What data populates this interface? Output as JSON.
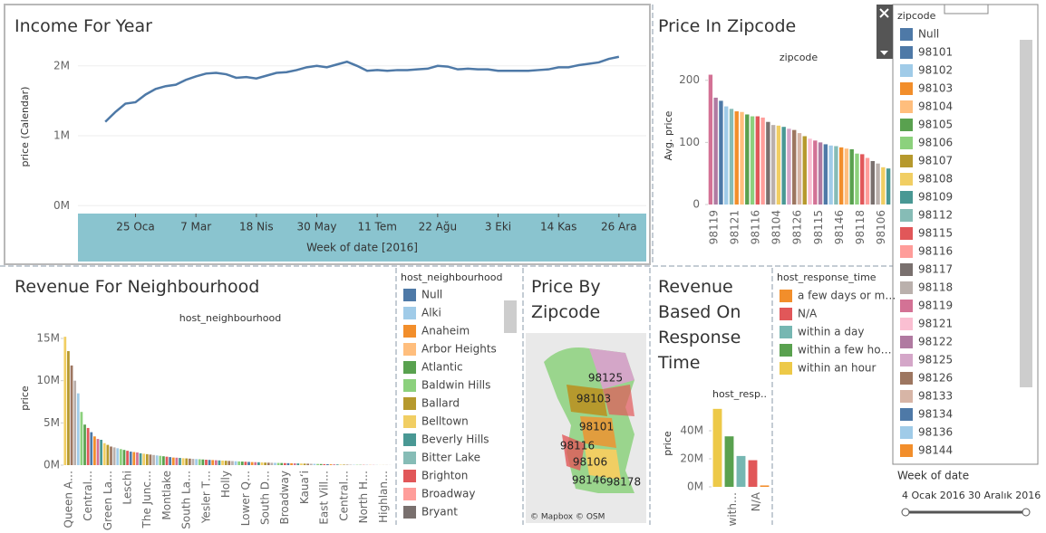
{
  "chart_data": [
    {
      "type": "line",
      "title": "Income For Year",
      "y_label": "price (Calendar)",
      "x_label": "Week of date [2016]",
      "color": "#4e79a7",
      "x": [
        "2016-01-04",
        "2016-01-11",
        "2016-01-18",
        "2016-01-25",
        "2016-02-01",
        "2016-02-08",
        "2016-02-15",
        "2016-02-22",
        "2016-02-29",
        "2016-03-07",
        "2016-03-14",
        "2016-03-21",
        "2016-03-28",
        "2016-04-04",
        "2016-04-11",
        "2016-04-18",
        "2016-04-25",
        "2016-05-02",
        "2016-05-09",
        "2016-05-16",
        "2016-05-23",
        "2016-05-30",
        "2016-06-06",
        "2016-06-13",
        "2016-06-20",
        "2016-06-27",
        "2016-07-04",
        "2016-07-11",
        "2016-07-18",
        "2016-07-25",
        "2016-08-01",
        "2016-08-08",
        "2016-08-15",
        "2016-08-22",
        "2016-08-29",
        "2016-09-05",
        "2016-09-12",
        "2016-09-19",
        "2016-09-26",
        "2016-10-03",
        "2016-10-10",
        "2016-10-17",
        "2016-10-24",
        "2016-10-31",
        "2016-11-07",
        "2016-11-14",
        "2016-11-21",
        "2016-11-28",
        "2016-12-05",
        "2016-12-12",
        "2016-12-19",
        "2016-12-26"
      ],
      "values": [
        1200000,
        1340000,
        1460000,
        1480000,
        1590000,
        1670000,
        1710000,
        1730000,
        1800000,
        1850000,
        1890000,
        1900000,
        1880000,
        1830000,
        1840000,
        1820000,
        1860000,
        1900000,
        1910000,
        1940000,
        1980000,
        2000000,
        1980000,
        2020000,
        2060000,
        2000000,
        1930000,
        1940000,
        1930000,
        1940000,
        1940000,
        1950000,
        1960000,
        2000000,
        1990000,
        1950000,
        1960000,
        1950000,
        1950000,
        1930000,
        1930000,
        1930000,
        1930000,
        1940000,
        1950000,
        1980000,
        1980000,
        2010000,
        2030000,
        2050000,
        2100000,
        2130000
      ],
      "xlim": [
        "2015-12-16",
        "2017-01-14"
      ],
      "xticks": [
        {
          "value": "2016-01-25",
          "label": "25 Oca"
        },
        {
          "value": "2016-03-07",
          "label": "7 Mar"
        },
        {
          "value": "2016-04-18",
          "label": "18 Nis"
        },
        {
          "value": "2016-05-30",
          "label": "30 May"
        },
        {
          "value": "2016-07-11",
          "label": "11 Tem"
        },
        {
          "value": "2016-08-22",
          "label": "22 Ağu"
        },
        {
          "value": "2016-10-03",
          "label": "3 Eki"
        },
        {
          "value": "2016-11-14",
          "label": "14 Kas"
        },
        {
          "value": "2016-12-26",
          "label": "26 Ara"
        }
      ],
      "ylim": [
        -100000,
        2360000
      ],
      "yticks": [
        {
          "value": 0,
          "label": "0M"
        },
        {
          "value": 1000000,
          "label": "1M"
        },
        {
          "value": 2000000,
          "label": "2M"
        }
      ],
      "grid": true
    },
    {
      "type": "bar",
      "title": "Price In Zipcode",
      "subtitle": "zipcode",
      "y_label": "Avg. price",
      "categories": [
        "98119",
        null,
        null,
        null,
        "98121",
        null,
        null,
        null,
        "98116",
        null,
        null,
        null,
        "98104",
        null,
        null,
        null,
        "98126",
        null,
        null,
        null,
        "98115",
        null,
        null,
        null,
        "98146",
        null,
        null,
        null,
        "98118",
        null,
        null,
        null,
        "98106",
        null,
        null
      ],
      "values": [
        209,
        172,
        167,
        158,
        154,
        150,
        149,
        145,
        142,
        142,
        140,
        133,
        128,
        127,
        125,
        122,
        120,
        115,
        110,
        106,
        103,
        100,
        97,
        95,
        94,
        92,
        90,
        89,
        82,
        81,
        75,
        70,
        66,
        60,
        58
      ],
      "palette": [
        "#d37295",
        "#b07aa1",
        "#4e79a7",
        "#a0cbe8",
        "#86bcb6",
        "#f28e2b",
        "#ffbe7d",
        "#59a14f",
        "#8cd17d",
        "#e15759",
        "#ff9d9a",
        "#79706e",
        "#bab0ac",
        "#f1ce63",
        "#499894",
        "#d4a6c8",
        "#9d7660",
        "#d7b5a6",
        "#b6992d",
        "#fabfd2"
      ],
      "ylim": [
        0,
        220
      ],
      "yticks": [
        0,
        100,
        200
      ],
      "grid": false
    },
    {
      "type": "bar",
      "title": "Revenue For Neighbourhood",
      "subtitle": "host_neighbourhood",
      "y_label": "price",
      "categories": [
        "Queen A…",
        null,
        null,
        null,
        null,
        null,
        "Central…",
        null,
        null,
        null,
        null,
        null,
        "Green La…",
        null,
        null,
        null,
        null,
        null,
        "Leschi",
        null,
        null,
        null,
        null,
        null,
        "The Junc…",
        null,
        null,
        null,
        null,
        null,
        "Montlake",
        null,
        null,
        null,
        null,
        null,
        "South La…",
        null,
        null,
        null,
        null,
        null,
        "Yesler T…",
        null,
        null,
        null,
        null,
        null,
        "Holly",
        null,
        null,
        null,
        null,
        null,
        "Lower Q…",
        null,
        null,
        null,
        null,
        null,
        "South D…",
        null,
        null,
        null,
        null,
        null,
        "Broadway",
        null,
        null,
        null,
        null,
        null,
        "Kauaʻi",
        null,
        null,
        null,
        null,
        null,
        "East Vill…",
        null,
        null,
        null,
        null,
        null,
        "Central…",
        null,
        null,
        null,
        null,
        null,
        "North H…",
        null,
        null,
        null,
        null,
        null,
        "Highlan…",
        null,
        null,
        null
      ],
      "values": [
        15200000,
        13500000,
        11800000,
        10000000,
        8500000,
        6300000,
        4800000,
        4400000,
        3900000,
        3400000,
        3100000,
        3000000,
        2600000,
        2400000,
        2200000,
        2100000,
        2000000,
        1900000,
        1800000,
        1700000,
        1600000,
        1550000,
        1500000,
        1400000,
        1350000,
        1300000,
        1250000,
        1200000,
        1150000,
        1100000,
        1050000,
        1000000,
        950000,
        900000,
        880000,
        850000,
        820000,
        800000,
        770000,
        740000,
        720000,
        700000,
        670000,
        640000,
        620000,
        600000,
        580000,
        560000,
        540000,
        520000,
        500000,
        480000,
        460000,
        440000,
        420000,
        400000,
        380000,
        360000,
        350000,
        340000,
        320000,
        300000,
        290000,
        280000,
        270000,
        260000,
        250000,
        240000,
        230000,
        220000,
        210000,
        200000,
        190000,
        180000,
        170000,
        160000,
        150000,
        140000,
        130000,
        120000,
        110000,
        100000,
        90000,
        80000,
        70000,
        60000,
        50000,
        50000,
        40000,
        40000,
        30000,
        30000,
        20000,
        20000,
        20000,
        10000,
        10000,
        10000,
        10000,
        10000
      ],
      "palette": [
        "#f1ce63",
        "#b6992d",
        "#9d7660",
        "#bab0ac",
        "#a0cbe8",
        "#8cd17d",
        "#59a14f",
        "#e15759",
        "#4e79a7",
        "#f28e2b",
        "#d37295",
        "#499894"
      ],
      "ylim": [
        0,
        16500000
      ],
      "yticks": [
        {
          "value": 0,
          "label": "0M"
        },
        {
          "value": 5000000,
          "label": "5M"
        },
        {
          "value": 10000000,
          "label": "10M"
        },
        {
          "value": 15000000,
          "label": "15M"
        }
      ],
      "grid": false
    },
    {
      "type": "bar",
      "title": "Revenue Based On Response Time",
      "subtitle": "host_resp..",
      "y_label": "price",
      "categories": [
        null,
        "with…",
        null,
        "N/A",
        null
      ],
      "values": [
        55600000,
        36000000,
        22000000,
        19000000,
        1000000
      ],
      "palette": [
        "#edc948",
        "#59a14f",
        "#76b7b2",
        "#e15759",
        "#f28e2b"
      ],
      "ylim": [
        0,
        60000000
      ],
      "yticks": [
        {
          "value": 0,
          "label": "0M"
        },
        {
          "value": 20000000,
          "label": "20M"
        },
        {
          "value": 40000000,
          "label": "40M"
        }
      ],
      "grid": false
    }
  ],
  "map": {
    "title": "Price By Zipcode",
    "labels": [
      "98125",
      "98103",
      "98101",
      "98116",
      "98106",
      "98146",
      "98178"
    ],
    "attribution": "© Mapbox © OSM"
  },
  "legends": [
    {
      "title": "zipcode",
      "items": [
        {
          "label": "Null",
          "color": "#4e79a7"
        },
        {
          "label": "98101",
          "color": "#4e79a7"
        },
        {
          "label": "98102",
          "color": "#a0cbe8"
        },
        {
          "label": "98103",
          "color": "#f28e2b"
        },
        {
          "label": "98104",
          "color": "#ffbe7d"
        },
        {
          "label": "98105",
          "color": "#59a14f"
        },
        {
          "label": "98106",
          "color": "#8cd17d"
        },
        {
          "label": "98107",
          "color": "#b6992d"
        },
        {
          "label": "98108",
          "color": "#f1ce63"
        },
        {
          "label": "98109",
          "color": "#499894"
        },
        {
          "label": "98112",
          "color": "#86bcb6"
        },
        {
          "label": "98115",
          "color": "#e15759"
        },
        {
          "label": "98116",
          "color": "#ff9d9a"
        },
        {
          "label": "98117",
          "color": "#79706e"
        },
        {
          "label": "98118",
          "color": "#bab0ac"
        },
        {
          "label": "98119",
          "color": "#d37295"
        },
        {
          "label": "98121",
          "color": "#fabfd2"
        },
        {
          "label": "98122",
          "color": "#b07aa1"
        },
        {
          "label": "98125",
          "color": "#d4a6c8"
        },
        {
          "label": "98126",
          "color": "#9d7660"
        },
        {
          "label": "98133",
          "color": "#d7b5a6"
        },
        {
          "label": "98134",
          "color": "#4e79a7"
        },
        {
          "label": "98136",
          "color": "#a0cbe8"
        },
        {
          "label": "98144",
          "color": "#f28e2b"
        }
      ]
    },
    {
      "title": "host_neighbourhood",
      "items": [
        {
          "label": "Null",
          "color": "#4e79a7"
        },
        {
          "label": "Alki",
          "color": "#a0cbe8"
        },
        {
          "label": "Anaheim",
          "color": "#f28e2b"
        },
        {
          "label": "Arbor Heights",
          "color": "#ffbe7d"
        },
        {
          "label": "Atlantic",
          "color": "#59a14f"
        },
        {
          "label": "Baldwin Hills",
          "color": "#8cd17d"
        },
        {
          "label": "Ballard",
          "color": "#b6992d"
        },
        {
          "label": "Belltown",
          "color": "#f1ce63"
        },
        {
          "label": "Beverly Hills",
          "color": "#499894"
        },
        {
          "label": "Bitter Lake",
          "color": "#86bcb6"
        },
        {
          "label": "Brighton",
          "color": "#e15759"
        },
        {
          "label": "Broadway",
          "color": "#ff9d9a"
        },
        {
          "label": "Bryant",
          "color": "#79706e"
        }
      ]
    },
    {
      "title": "host_response_time",
      "items": [
        {
          "label": "a few days or m…",
          "color": "#f28e2b"
        },
        {
          "label": "N/A",
          "color": "#e15759"
        },
        {
          "label": "within a day",
          "color": "#76b7b2"
        },
        {
          "label": "within a few ho…",
          "color": "#59a14f"
        },
        {
          "label": "within an hour",
          "color": "#edc948"
        }
      ]
    }
  ],
  "filter": {
    "title": "Week of date",
    "start": "4 Ocak 2016",
    "end": "30 Aralık 2016"
  }
}
